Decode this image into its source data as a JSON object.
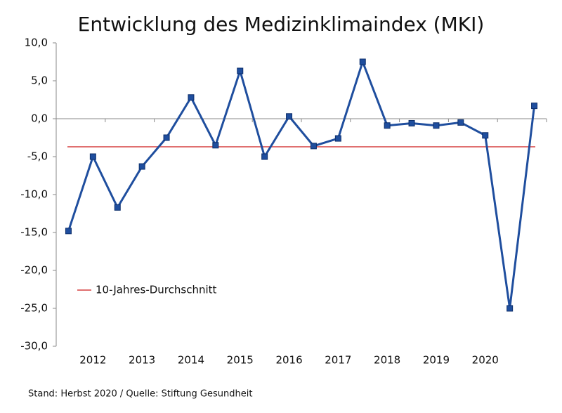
{
  "chart_data": {
    "type": "line",
    "title": "Entwicklung des Medizinklimaindex (MKI)",
    "categories": [
      null,
      "2012",
      null,
      "2013",
      null,
      "2014",
      null,
      "2015",
      null,
      "2016",
      null,
      "2017",
      null,
      "2018",
      null,
      "2019",
      null,
      "2020",
      null,
      null
    ],
    "series": [
      {
        "name": "MKI",
        "color": "#1f4e9e",
        "values": [
          -14.8,
          -5.0,
          -11.7,
          -6.3,
          -2.5,
          2.8,
          -3.5,
          6.3,
          -5.0,
          0.3,
          -3.6,
          -2.6,
          7.5,
          -0.9,
          -0.6,
          -0.9,
          -0.5,
          -2.2,
          -25.0,
          1.7
        ]
      }
    ],
    "reference_line": {
      "name": "10-Jahres-Durchschnitt",
      "value": -3.7,
      "color": "#e07070"
    },
    "ylim": [
      -30,
      10
    ],
    "yticks": [
      {
        "value": -30,
        "label": "-30,0"
      },
      {
        "value": -25,
        "label": "-25,0"
      },
      {
        "value": -20,
        "label": "-20,0"
      },
      {
        "value": -15,
        "label": "-15,0"
      },
      {
        "value": -10,
        "label": "-10,0"
      },
      {
        "value": -5,
        "label": "-5,0"
      },
      {
        "value": 0,
        "label": "0,0"
      },
      {
        "value": 5,
        "label": "5,0"
      },
      {
        "value": 10,
        "label": "10,0"
      }
    ],
    "legend": "lower-left",
    "footnote": "Stand: Herbst 2020 / Quelle: Stiftung Gesundheit"
  }
}
